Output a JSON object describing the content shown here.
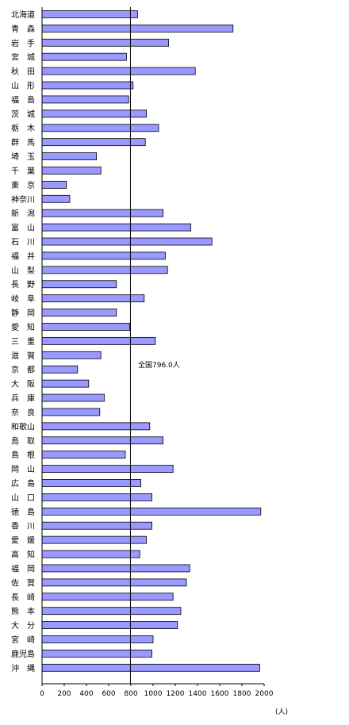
{
  "chart_data": {
    "type": "bar",
    "orientation": "horizontal",
    "categories": [
      "北海道",
      "青　森",
      "岩　手",
      "宮　城",
      "秋　田",
      "山　形",
      "福　島",
      "茨　城",
      "栃　木",
      "群　馬",
      "埼　玉",
      "千　葉",
      "東　京",
      "神奈川",
      "新　潟",
      "富　山",
      "石　川",
      "福　井",
      "山　梨",
      "長　野",
      "岐　阜",
      "静　岡",
      "愛　知",
      "三　重",
      "滋　賀",
      "京　都",
      "大　阪",
      "兵　庫",
      "奈　良",
      "和歌山",
      "鳥　取",
      "島　根",
      "岡　山",
      "広　島",
      "山　口",
      "徳　島",
      "香　川",
      "愛　媛",
      "高　知",
      "福　岡",
      "佐　賀",
      "長　崎",
      "熊　本",
      "大　分",
      "宮　崎",
      "鹿児島",
      "沖　縄"
    ],
    "values": [
      860,
      1720,
      1140,
      760,
      1380,
      820,
      780,
      940,
      1050,
      930,
      490,
      530,
      220,
      250,
      1090,
      1340,
      1530,
      1110,
      1130,
      670,
      920,
      670,
      790,
      1020,
      530,
      320,
      420,
      560,
      520,
      970,
      1090,
      750,
      1180,
      890,
      990,
      1970,
      990,
      940,
      880,
      1330,
      1300,
      1180,
      1250,
      1220,
      1000,
      990,
      1960
    ],
    "reference": {
      "value": 796,
      "label": "全国796.0人"
    },
    "xticks": [
      0,
      200,
      400,
      600,
      800,
      1000,
      1200,
      1400,
      1600,
      1800,
      2000
    ],
    "xlim": [
      0,
      2000
    ],
    "xunit": "(人)",
    "bar_color": "#9999ff",
    "grid": false
  }
}
